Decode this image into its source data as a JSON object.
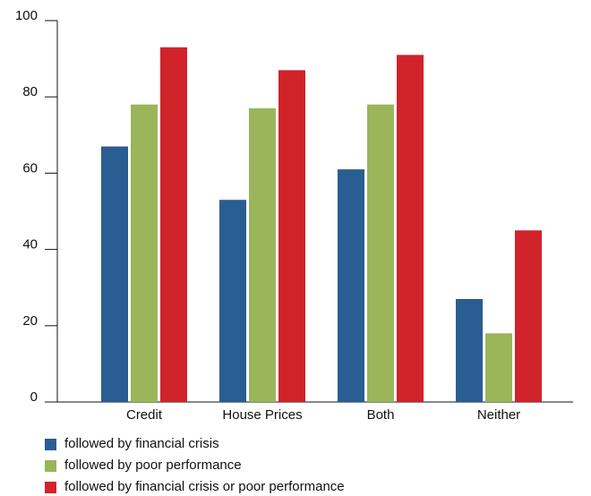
{
  "chart_data": {
    "type": "bar",
    "categories": [
      "Credit",
      "House Prices",
      "Both",
      "Neither"
    ],
    "series": [
      {
        "name": "followed by financial crisis",
        "color": "#2a5d91",
        "values": [
          67,
          53,
          61,
          27
        ]
      },
      {
        "name": "followed by poor performance",
        "color": "#9bb55a",
        "values": [
          78,
          77,
          78,
          18
        ]
      },
      {
        "name": "followed by financial crisis or poor performance",
        "color": "#d0232a",
        "values": [
          93,
          87,
          91,
          45
        ]
      }
    ],
    "ylim": [
      0,
      100
    ],
    "yticks": [
      0,
      20,
      40,
      60,
      80,
      100
    ]
  }
}
